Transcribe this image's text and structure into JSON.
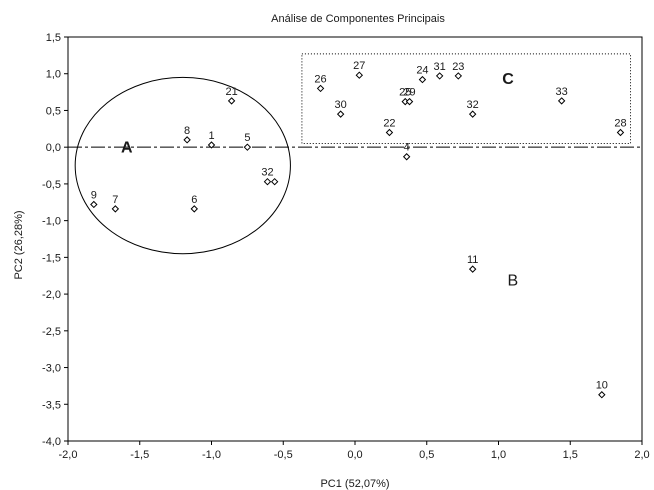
{
  "chart_data": {
    "type": "scatter",
    "title": "Análise de Componentes Principais",
    "xlabel": "PC1 (52,07%)",
    "ylabel": "PC2 (26,28%)",
    "xlim": [
      -2.0,
      2.0
    ],
    "ylim": [
      -4.0,
      1.5
    ],
    "x_ticks": [
      "-2,0",
      "-1,5",
      "-1,0",
      "-0,5",
      "0,0",
      "0,5",
      "1,0",
      "1,5",
      "2,0"
    ],
    "y_ticks": [
      "1,5",
      "1,0",
      "0,5",
      "0,0",
      "-0,5",
      "-1,0",
      "-1,5",
      "-2,0",
      "-2,5",
      "-3,0",
      "-3,5",
      "-4,0"
    ],
    "grid": false,
    "zero_line_y": 0,
    "points": [
      {
        "label": "1",
        "x": -1.0,
        "y": 0.03
      },
      {
        "label": "5",
        "x": -0.75,
        "y": 0.0
      },
      {
        "label": "8",
        "x": -1.17,
        "y": 0.1
      },
      {
        "label": "21",
        "x": -0.86,
        "y": 0.63
      },
      {
        "label": "9",
        "x": -1.82,
        "y": -0.78
      },
      {
        "label": "7",
        "x": -1.67,
        "y": -0.84
      },
      {
        "label": "6",
        "x": -1.12,
        "y": -0.84
      },
      {
        "label": "32",
        "x": -0.61,
        "y": -0.47
      },
      {
        "label": "",
        "x": -0.56,
        "y": -0.47
      },
      {
        "label": "26",
        "x": -0.24,
        "y": 0.8
      },
      {
        "label": "27",
        "x": 0.03,
        "y": 0.98
      },
      {
        "label": "30",
        "x": -0.1,
        "y": 0.45
      },
      {
        "label": "22",
        "x": 0.24,
        "y": 0.2
      },
      {
        "label": "25",
        "x": 0.35,
        "y": 0.62
      },
      {
        "label": "29",
        "x": 0.38,
        "y": 0.62
      },
      {
        "label": "24",
        "x": 0.47,
        "y": 0.92
      },
      {
        "label": "31",
        "x": 0.59,
        "y": 0.97
      },
      {
        "label": "23",
        "x": 0.72,
        "y": 0.97
      },
      {
        "label": "32",
        "x": 0.82,
        "y": 0.45
      },
      {
        "label": "33",
        "x": 1.44,
        "y": 0.63
      },
      {
        "label": "28",
        "x": 1.85,
        "y": 0.2
      },
      {
        "label": "4",
        "x": 0.36,
        "y": -0.13
      },
      {
        "label": "11",
        "x": 0.82,
        "y": -1.66
      },
      {
        "label": "10",
        "x": 1.72,
        "y": -3.37
      }
    ],
    "groups": [
      {
        "label": "A",
        "shape": "ellipse",
        "cx": -1.2,
        "cy": -0.25,
        "rx": 0.75,
        "ry": 1.2
      },
      {
        "label": "B",
        "shape": "none",
        "x": 1.1,
        "y": -1.8
      },
      {
        "label": "C",
        "shape": "dotted-rectangle",
        "x0": -0.37,
        "y0": 0.05,
        "x1": 1.92,
        "y1": 1.27
      }
    ]
  }
}
